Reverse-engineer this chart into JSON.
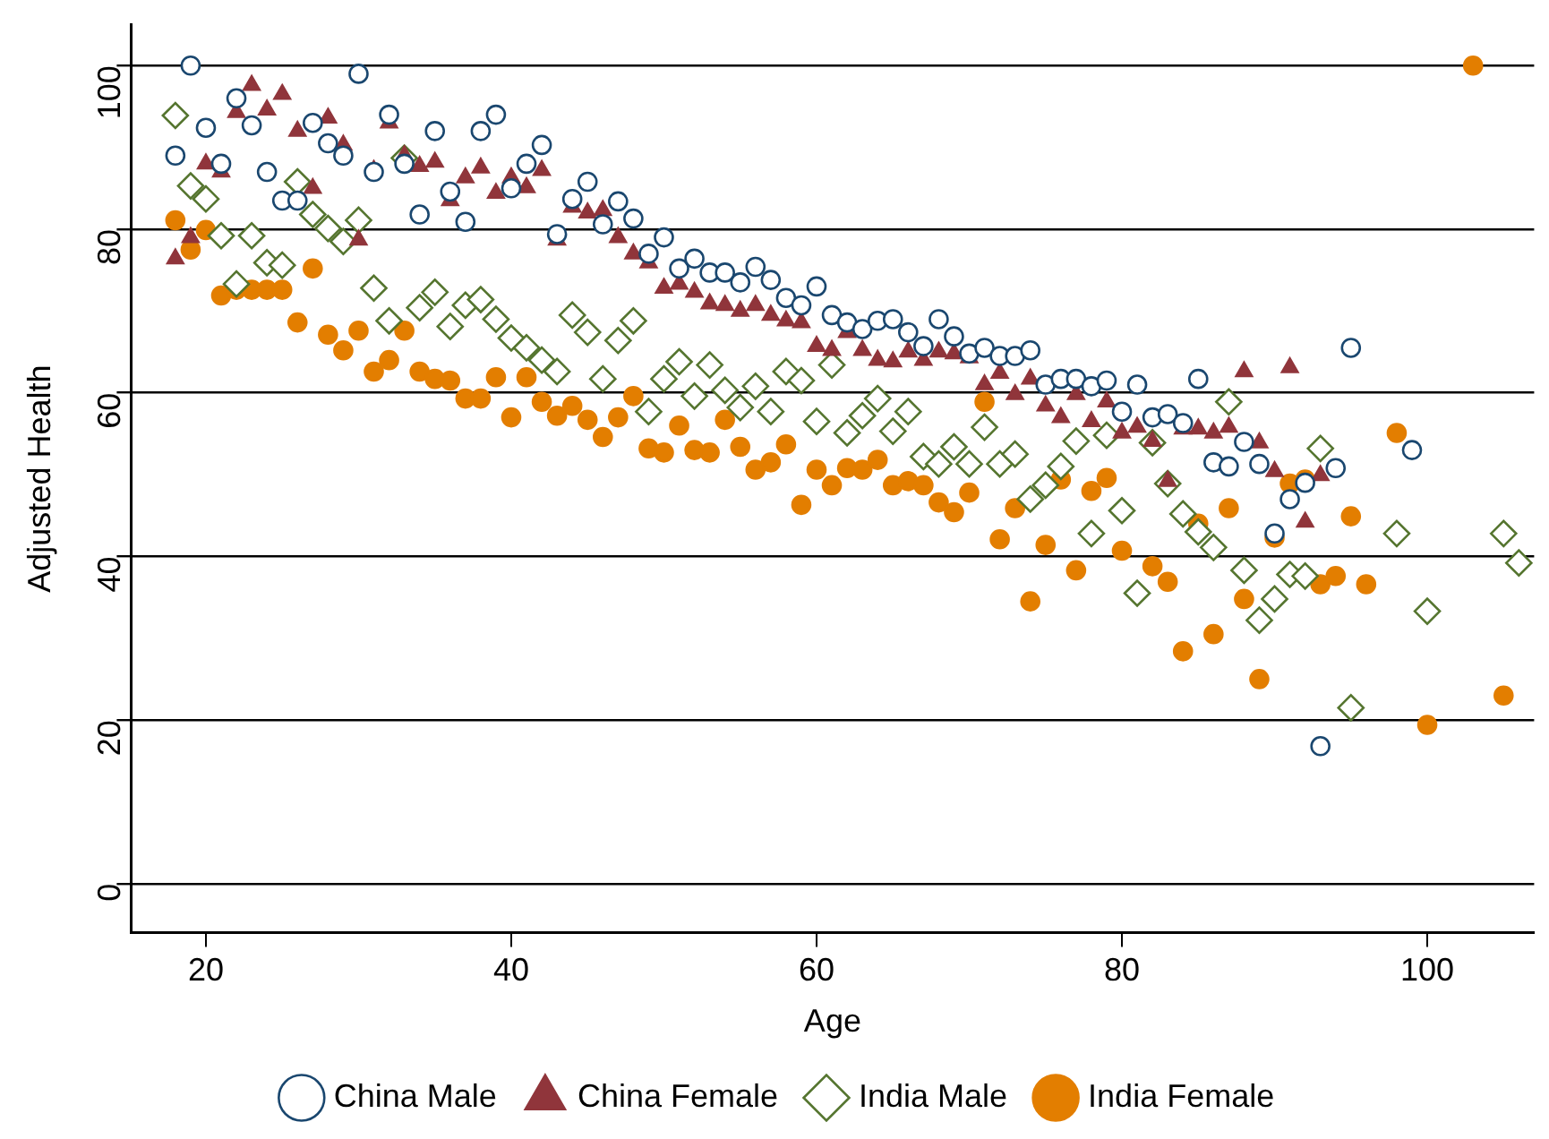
{
  "chart_data": {
    "type": "scatter",
    "xlabel": "Age",
    "ylabel": "Adjusted Health",
    "xlim": [
      15.1,
      107
    ],
    "xticks": [
      20,
      40,
      60,
      80,
      100
    ],
    "ylim": [
      -6,
      105
    ],
    "yticks": [
      0,
      20,
      40,
      60,
      80,
      100
    ],
    "grid": "y",
    "legend": "bottom",
    "series": [
      {
        "name": "China Male",
        "color": "#1a476f",
        "marker": "circle",
        "x": [
          18,
          19,
          20,
          21,
          22,
          23,
          24,
          25,
          26,
          27,
          28,
          29,
          30,
          31,
          32,
          33,
          34,
          35,
          36,
          37,
          38,
          39,
          40,
          41,
          42,
          43,
          44,
          45,
          46,
          47,
          48,
          49,
          50,
          51,
          52,
          53,
          54,
          55,
          56,
          57,
          58,
          59,
          60,
          61,
          62,
          63,
          64,
          65,
          66,
          67,
          68,
          69,
          70,
          71,
          72,
          73,
          74,
          75,
          76,
          77,
          78,
          79,
          80,
          81,
          82,
          83,
          84,
          85,
          86,
          87,
          88,
          89,
          90,
          91,
          92,
          93,
          94,
          95,
          99
        ],
        "values": [
          89,
          100,
          92.4,
          88,
          96,
          92.7,
          87,
          83.5,
          83.5,
          93,
          90.5,
          89,
          99,
          87,
          94,
          88,
          81.8,
          92,
          84.6,
          80.9,
          92,
          94,
          85,
          88,
          90.3,
          79.4,
          83.7,
          85.8,
          80.6,
          83.4,
          81.3,
          77,
          79,
          75.2,
          76.4,
          74.7,
          74.7,
          73.5,
          75.4,
          73.8,
          71.6,
          70.7,
          73,
          69.5,
          68.6,
          67.8,
          68.8,
          69,
          67.4,
          65.7,
          69,
          66.9,
          64.8,
          65.5,
          64.5,
          64.5,
          65.2,
          61,
          61.7,
          61.7,
          60.8,
          61.5,
          57.7,
          61,
          57,
          57.4,
          56.3,
          61.7,
          51.5,
          51,
          54,
          51.3,
          42.8,
          47,
          49,
          16.8,
          50.8,
          65.5,
          53
        ]
      },
      {
        "name": "China Female",
        "color": "#90353b",
        "marker": "triangle",
        "x": [
          18,
          19,
          20,
          21,
          22,
          23,
          24,
          25,
          26,
          27,
          28,
          29,
          30,
          31,
          32,
          33,
          34,
          35,
          36,
          37,
          38,
          39,
          40,
          41,
          42,
          43,
          44,
          45,
          46,
          47,
          48,
          49,
          50,
          51,
          52,
          53,
          54,
          55,
          56,
          57,
          58,
          59,
          60,
          61,
          62,
          63,
          64,
          65,
          66,
          67,
          68,
          69,
          70,
          71,
          72,
          73,
          74,
          75,
          76,
          77,
          78,
          79,
          80,
          81,
          82,
          83,
          84,
          85,
          86,
          87,
          88,
          89,
          90,
          91,
          92,
          93
        ],
        "values": [
          76.4,
          79,
          88,
          87,
          94.3,
          97.6,
          94.6,
          96.5,
          92,
          85,
          93.6,
          90.3,
          78.7,
          87.2,
          93,
          89,
          87.7,
          88.2,
          83.5,
          86.3,
          87.5,
          84.4,
          86.3,
          85.1,
          87.2,
          78.7,
          82.7,
          82,
          82.3,
          79,
          77,
          75.9,
          72.8,
          73.3,
          72.3,
          70.9,
          70.7,
          70,
          70.7,
          69.5,
          68.8,
          68.6,
          65.7,
          65.2,
          67.4,
          65.2,
          64,
          63.8,
          65,
          64,
          65,
          64.8,
          64.3,
          61,
          62.4,
          59.8,
          61.7,
          58.4,
          57,
          59.8,
          56.5,
          58.9,
          55.1,
          55.8,
          54.1,
          49.2,
          55.6,
          55.6,
          55.1,
          55.8,
          62.6,
          53.9,
          50.4,
          63.1,
          44.2,
          49.9
        ]
      },
      {
        "name": "India Male",
        "color": "#55752f",
        "marker": "diamond",
        "x": [
          18,
          19,
          20,
          21,
          22,
          23,
          24,
          25,
          26,
          27,
          28,
          29,
          30,
          31,
          32,
          33,
          34,
          35,
          36,
          37,
          38,
          39,
          40,
          41,
          42,
          43,
          44,
          45,
          46,
          47,
          48,
          49,
          50,
          51,
          52,
          53,
          54,
          55,
          56,
          57,
          58,
          59,
          60,
          61,
          62,
          63,
          64,
          65,
          66,
          67,
          68,
          69,
          70,
          71,
          72,
          73,
          74,
          75,
          76,
          77,
          78,
          79,
          80,
          81,
          82,
          83,
          84,
          85,
          86,
          87,
          88,
          89,
          90,
          91,
          92,
          93,
          95,
          98,
          100,
          105,
          106
        ],
        "values": [
          93.9,
          85.3,
          83.7,
          79.2,
          73.3,
          79.2,
          75.9,
          75.6,
          85.8,
          81.8,
          80.1,
          78.5,
          81.1,
          72.8,
          68.8,
          88.7,
          70.4,
          72.3,
          68.1,
          70.7,
          71.4,
          69,
          66.7,
          65.5,
          64,
          62.6,
          69.5,
          67.4,
          61.7,
          66.4,
          68.8,
          57.7,
          61.7,
          63.8,
          59.6,
          63.4,
          60.3,
          58.2,
          60.8,
          57.7,
          62.6,
          61.5,
          56.5,
          63.4,
          55.1,
          57.2,
          59.3,
          55.3,
          57.7,
          52.2,
          51.3,
          53.4,
          51.3,
          55.8,
          51.3,
          52.5,
          47,
          48.7,
          51,
          54.1,
          42.8,
          54.8,
          45.6,
          35.5,
          53.9,
          48.9,
          45.2,
          43,
          41.1,
          58.9,
          38.3,
          32.2,
          34.8,
          37.8,
          37.6,
          53.2,
          21.5,
          42.8,
          33.3,
          42.8,
          39.2
        ]
      },
      {
        "name": "India Female",
        "color": "#e37e00",
        "marker": "circle",
        "x": [
          18,
          19,
          20,
          21,
          22,
          23,
          24,
          25,
          26,
          27,
          28,
          29,
          30,
          31,
          32,
          33,
          34,
          35,
          36,
          37,
          38,
          39,
          40,
          41,
          42,
          43,
          44,
          45,
          46,
          47,
          48,
          49,
          50,
          51,
          52,
          53,
          54,
          55,
          56,
          57,
          58,
          59,
          60,
          61,
          62,
          63,
          64,
          65,
          66,
          67,
          68,
          69,
          70,
          71,
          72,
          73,
          74,
          75,
          76,
          77,
          78,
          79,
          80,
          82,
          83,
          84,
          85,
          86,
          87,
          88,
          89,
          90,
          91,
          92,
          93,
          94,
          95,
          96,
          98,
          100,
          103,
          105
        ],
        "values": [
          81.1,
          77.5,
          79.9,
          71.9,
          72.6,
          72.6,
          72.6,
          72.6,
          68.6,
          75.2,
          67.1,
          65.2,
          67.6,
          62.6,
          64,
          67.6,
          62.6,
          61.7,
          61.5,
          59.3,
          59.3,
          61.9,
          57,
          61.9,
          58.9,
          57.2,
          58.4,
          56.7,
          54.6,
          57,
          59.6,
          53.2,
          52.7,
          56,
          53,
          52.7,
          56.7,
          53.4,
          50.6,
          51.5,
          53.7,
          46.3,
          50.6,
          48.7,
          50.8,
          50.6,
          51.8,
          48.7,
          49.2,
          48.7,
          46.6,
          45.4,
          47.8,
          58.9,
          42.1,
          45.9,
          34.5,
          41.4,
          49.4,
          38.3,
          48,
          49.6,
          40.7,
          38.8,
          36.9,
          28.4,
          44,
          30.5,
          45.9,
          34.8,
          25,
          42.3,
          48.9,
          49.4,
          36.6,
          37.6,
          44.9,
          36.6,
          55.1,
          19.4,
          100,
          23
        ]
      }
    ]
  }
}
